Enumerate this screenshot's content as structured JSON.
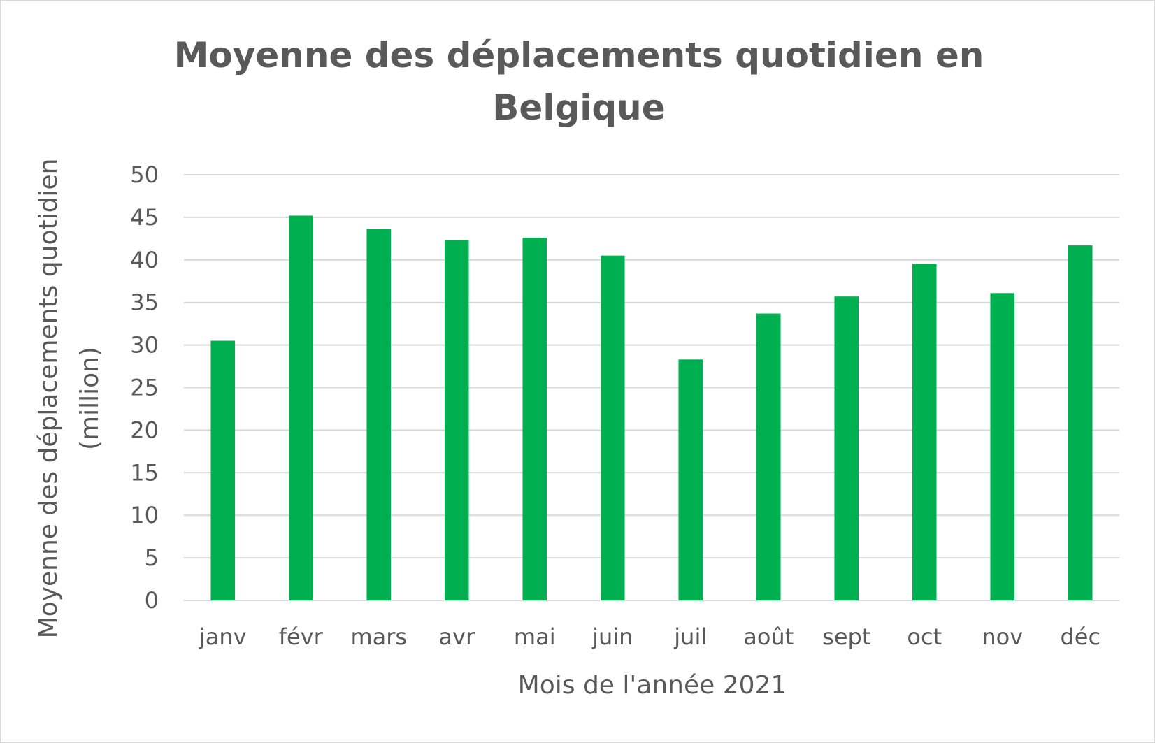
{
  "chart_data": {
    "type": "bar",
    "title": [
      "Moyenne des déplacements quotidien en",
      "Belgique"
    ],
    "xlabel": "Mois de l'année 2021",
    "ylabel": [
      "Moyenne des déplacements quotidien",
      "(million)"
    ],
    "categories": [
      "janv",
      "févr",
      "mars",
      "avr",
      "mai",
      "juin",
      "juil",
      "août",
      "sept",
      "oct",
      "nov",
      "déc"
    ],
    "values": [
      30.5,
      45.2,
      43.6,
      42.3,
      42.6,
      40.5,
      28.3,
      33.7,
      35.7,
      39.5,
      36.1,
      41.7
    ],
    "ylim": [
      0,
      50
    ],
    "yticks": [
      "0",
      "5",
      "10",
      "15",
      "20",
      "25",
      "30",
      "35",
      "40",
      "45",
      "50"
    ],
    "grid": true,
    "legend": "none",
    "bar_color": "#00b050",
    "grid_color": "#d9d9d9",
    "text_color": "#595959"
  }
}
